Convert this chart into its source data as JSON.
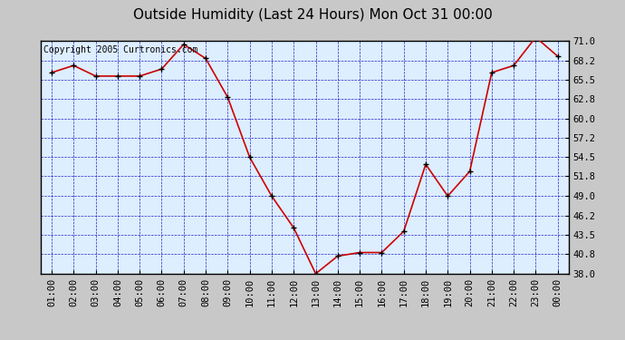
{
  "title": "Outside Humidity (Last 24 Hours) Mon Oct 31 00:00",
  "copyright": "Copyright 2005 Curtronics.com",
  "x_labels": [
    "01:00",
    "02:00",
    "03:00",
    "04:00",
    "05:00",
    "06:00",
    "07:00",
    "08:00",
    "09:00",
    "10:00",
    "11:00",
    "12:00",
    "13:00",
    "14:00",
    "15:00",
    "16:00",
    "17:00",
    "18:00",
    "19:00",
    "20:00",
    "21:00",
    "22:00",
    "23:00",
    "00:00"
  ],
  "x_values": [
    1,
    2,
    3,
    4,
    5,
    6,
    7,
    8,
    9,
    10,
    11,
    12,
    13,
    14,
    15,
    16,
    17,
    18,
    19,
    20,
    21,
    22,
    23,
    24
  ],
  "y_values": [
    66.5,
    67.5,
    66.0,
    66.0,
    66.0,
    67.0,
    70.5,
    68.5,
    63.0,
    54.5,
    49.0,
    44.5,
    38.0,
    40.5,
    41.0,
    41.0,
    44.0,
    53.5,
    49.0,
    52.5,
    66.5,
    67.5,
    71.5,
    68.8
  ],
  "ylim_min": 38.0,
  "ylim_max": 71.0,
  "yticks": [
    38.0,
    40.8,
    43.5,
    46.2,
    49.0,
    51.8,
    54.5,
    57.2,
    60.0,
    62.8,
    65.5,
    68.2,
    71.0
  ],
  "line_color": "#cc0000",
  "marker_color": "#000000",
  "bg_color": "#ddeeff",
  "outer_bg_color": "#c8c8c8",
  "grid_color": "#0000bb",
  "title_fontsize": 11,
  "copyright_fontsize": 7,
  "tick_fontsize": 7.5,
  "ytick_fontsize": 7.5
}
